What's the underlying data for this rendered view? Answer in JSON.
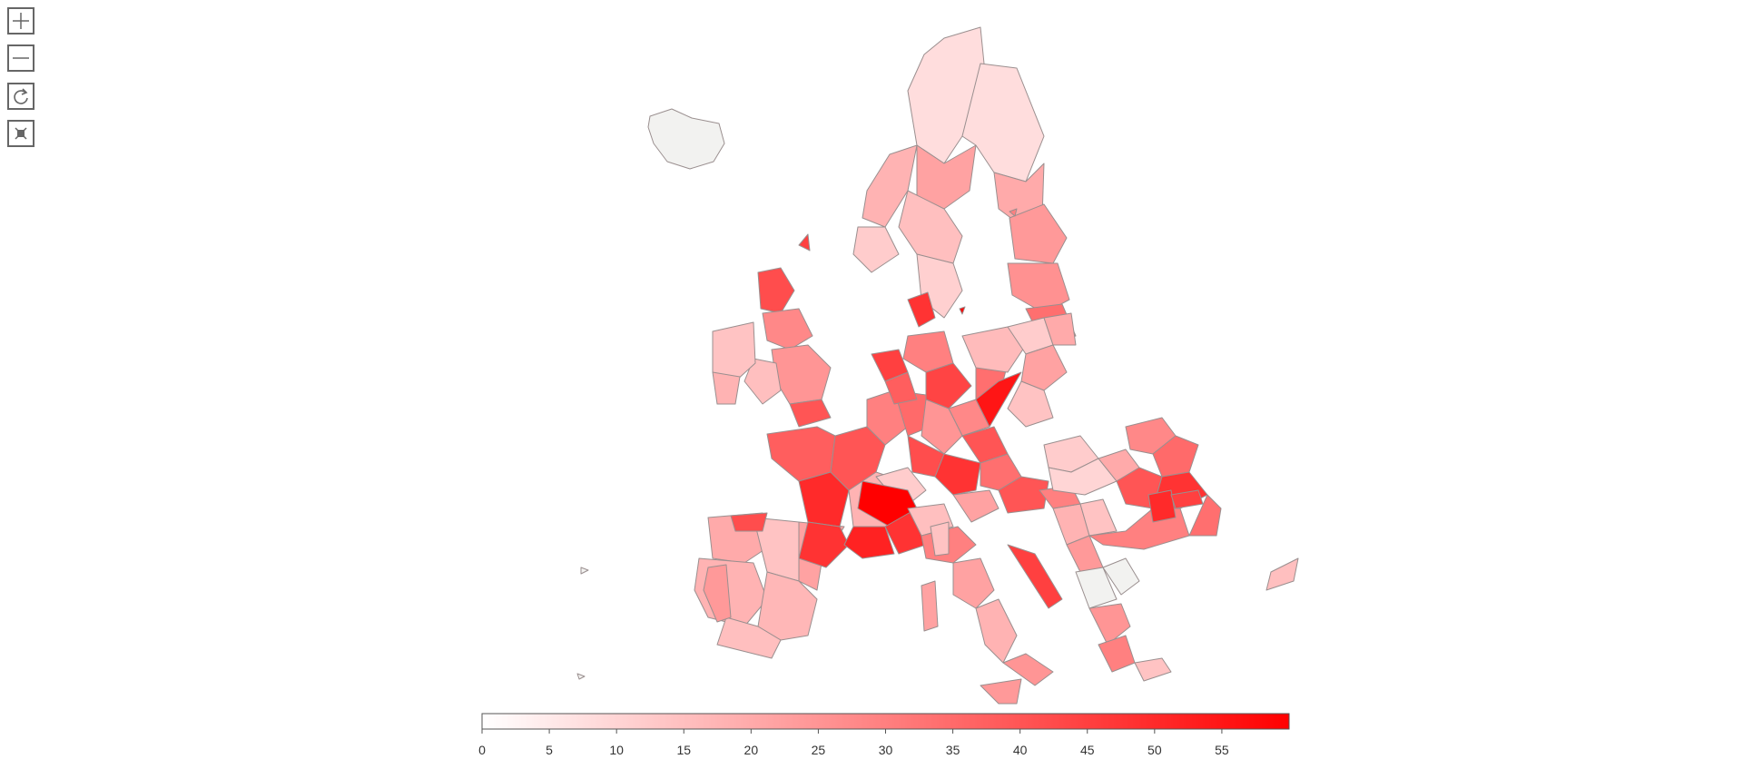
{
  "controls": [
    {
      "name": "zoom-in-button",
      "icon": "plus-icon"
    },
    {
      "name": "zoom-out-button",
      "icon": "minus-icon"
    },
    {
      "name": "reset-view-button",
      "icon": "refresh-icon"
    },
    {
      "name": "fit-bounds-button",
      "icon": "fit-icon"
    }
  ],
  "legend": {
    "min": 0,
    "max": 60,
    "ticks": [
      "0",
      "5",
      "10",
      "15",
      "20",
      "25",
      "30",
      "35",
      "40",
      "45",
      "50",
      "55"
    ],
    "color_low": "#ffffff",
    "color_high": "#ff0000"
  },
  "colors": {
    "region_stroke": "#9a8f8f",
    "no_data_fill": "#f2f2f0"
  }
}
